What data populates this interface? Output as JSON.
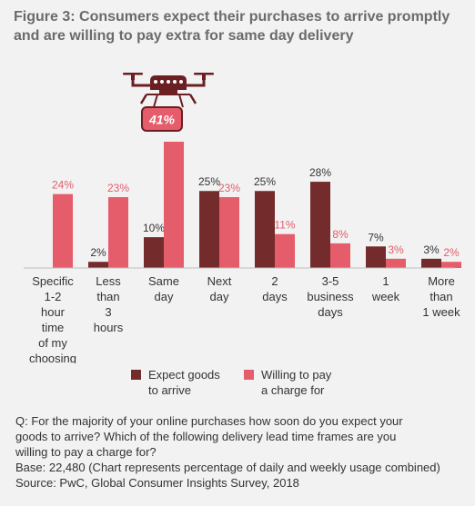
{
  "title": {
    "line1": "Figure 3: Consumers expect their purchases to arrive promptly",
    "line2": "and are willing to pay extra for same day delivery"
  },
  "highlight": {
    "label": "41%",
    "icon": "drone-icon"
  },
  "colors": {
    "expect": "#732b2b",
    "willing": "#e55c6b",
    "text": "#333333",
    "title": "#6b6b6b",
    "baseline": "#bfbfbf"
  },
  "chart_data": {
    "type": "bar",
    "categories": [
      [
        "Specific",
        "1-2",
        "hour",
        "time",
        "of my",
        "choosing"
      ],
      [
        "Less",
        "than",
        "3",
        "hours"
      ],
      [
        "Same",
        "day"
      ],
      [
        "Next",
        "day"
      ],
      [
        "2",
        "days"
      ],
      [
        "3-5",
        "business",
        "days"
      ],
      [
        "1",
        "week"
      ],
      [
        "More",
        "than",
        "1 week"
      ]
    ],
    "series": [
      {
        "name": "Expect goods to arrive",
        "values": [
          null,
          2,
          10,
          25,
          25,
          28,
          7,
          3
        ],
        "labels": [
          "",
          "2%",
          "10%",
          "25%",
          "25%",
          "28%",
          "7%",
          "3%"
        ]
      },
      {
        "name": "Willing to pay a charge for",
        "values": [
          24,
          23,
          41,
          23,
          11,
          8,
          3,
          2
        ],
        "labels": [
          "24%",
          "23%",
          "",
          "23%",
          "11%",
          "8%",
          "3%",
          "2%"
        ]
      }
    ],
    "ylim": [
      0,
      41
    ],
    "grid": false
  },
  "legend": {
    "expect": [
      "Expect goods",
      "to arrive"
    ],
    "willing": [
      "Willing to pay",
      "a charge for"
    ]
  },
  "footer": {
    "q1": "Q: For the majority of your online purchases how soon do you expect your",
    "q2": "goods to arrive? Which of the following delivery lead time frames are you",
    "q3": "willing to pay a charge for?",
    "base": "Base: 22,480 (Chart represents percentage of daily and weekly usage combined)",
    "source": "Source: PwC, Global Consumer Insights Survey, 2018"
  }
}
